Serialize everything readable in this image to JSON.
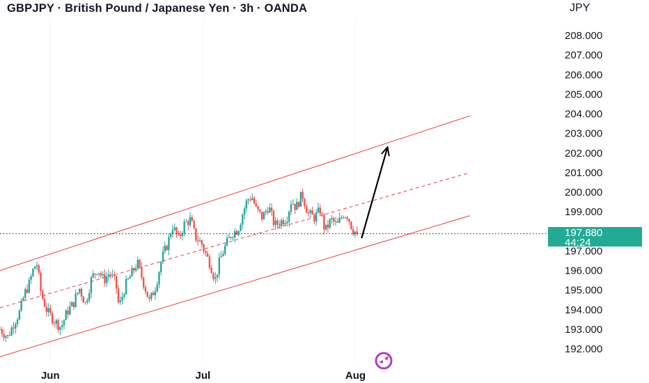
{
  "header": {
    "title": "GBPJPY · British Pound / Japanese Yen · 3h · OANDA",
    "currency": "JPY"
  },
  "price_tag": {
    "price": "197.880",
    "countdown": "44:24"
  },
  "colors": {
    "up": "#26a69a",
    "down": "#ef5350",
    "channel": "#f23645",
    "arrow": "#000000",
    "price_tag_bg": "#22ab94",
    "grid": "#f0f3fa"
  },
  "chart_data": {
    "type": "candlestick",
    "symbol": "GBPJPY",
    "interval": "3h",
    "ylim": [
      191.6,
      208.3
    ],
    "y_ticks": [
      "192.000",
      "193.000",
      "194.000",
      "195.000",
      "196.000",
      "197.000",
      "198.000",
      "199.000",
      "200.000",
      "201.000",
      "202.000",
      "203.000",
      "204.000",
      "205.000",
      "206.000",
      "207.000",
      "208.000"
    ],
    "x_ticks": [
      "Jun",
      "Jul",
      "Aug"
    ],
    "x_tick_positions": [
      0.5,
      10.5,
      20.5
    ],
    "xlim": [
      -2.8,
      32.8
    ],
    "last_price": 197.88,
    "close_path": [
      [
        -2.8,
        193.0
      ],
      [
        -2.3,
        192.6
      ],
      [
        -1.9,
        193.3
      ],
      [
        -1.5,
        193.9
      ],
      [
        -1.2,
        194.8
      ],
      [
        -0.9,
        195.3
      ],
      [
        -0.6,
        196.1
      ],
      [
        -0.4,
        196.4
      ],
      [
        -0.1,
        194.8
      ],
      [
        0.3,
        193.9
      ],
      [
        0.8,
        193.4
      ],
      [
        1.2,
        193.1
      ],
      [
        1.6,
        193.9
      ],
      [
        2.0,
        194.3
      ],
      [
        2.4,
        195.1
      ],
      [
        2.8,
        194.3
      ],
      [
        3.2,
        195.6
      ],
      [
        3.6,
        196.1
      ],
      [
        4.0,
        195.5
      ],
      [
        4.4,
        195.9
      ],
      [
        4.8,
        195.3
      ],
      [
        5.0,
        194.1
      ],
      [
        5.4,
        195.2
      ],
      [
        5.8,
        195.8
      ],
      [
        6.2,
        196.4
      ],
      [
        6.6,
        195.4
      ],
      [
        7.0,
        194.4
      ],
      [
        7.4,
        195.2
      ],
      [
        7.8,
        196.6
      ],
      [
        8.2,
        197.4
      ],
      [
        8.5,
        198.3
      ],
      [
        8.9,
        197.6
      ],
      [
        9.3,
        198.4
      ],
      [
        9.7,
        198.6
      ],
      [
        10.0,
        197.7
      ],
      [
        10.4,
        197.4
      ],
      [
        10.7,
        196.8
      ],
      [
        11.0,
        196.3
      ],
      [
        11.3,
        195.5
      ],
      [
        11.6,
        196.5
      ],
      [
        12.0,
        197.3
      ],
      [
        12.4,
        197.9
      ],
      [
        12.8,
        198.1
      ],
      [
        13.1,
        198.9
      ],
      [
        13.4,
        199.6
      ],
      [
        13.7,
        199.8
      ],
      [
        14.0,
        199.1
      ],
      [
        14.4,
        198.7
      ],
      [
        14.8,
        199.3
      ],
      [
        15.2,
        198.3
      ],
      [
        15.6,
        198.5
      ],
      [
        16.0,
        198.7
      ],
      [
        16.3,
        199.6
      ],
      [
        16.6,
        199.2
      ],
      [
        17.0,
        199.9
      ],
      [
        17.4,
        198.9
      ],
      [
        17.8,
        198.7
      ],
      [
        18.2,
        199.1
      ],
      [
        18.5,
        198.0
      ],
      [
        18.9,
        198.6
      ],
      [
        19.3,
        198.3
      ],
      [
        19.7,
        198.9
      ],
      [
        20.0,
        198.8
      ],
      [
        20.3,
        198.1
      ],
      [
        20.6,
        197.9
      ]
    ],
    "channel": {
      "upper": [
        [
          -2.8,
          196.0
        ],
        [
          28.0,
          203.9
        ]
      ],
      "middle": [
        [
          -2.8,
          194.1
        ],
        [
          28.0,
          201.0
        ]
      ],
      "lower": [
        [
          -2.8,
          191.6
        ],
        [
          28.0,
          198.8
        ]
      ]
    },
    "arrow": {
      "from": [
        20.9,
        197.65
      ],
      "to": [
        22.6,
        202.3
      ]
    },
    "horizontal_line": 197.88
  }
}
